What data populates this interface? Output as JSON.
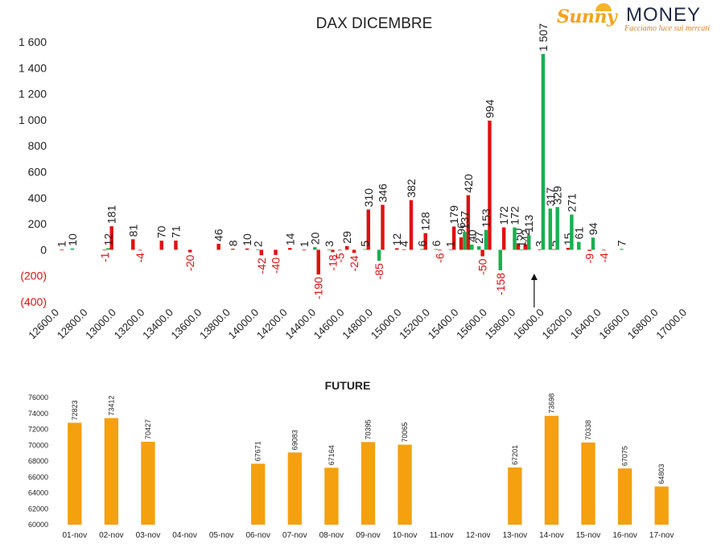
{
  "logo": {
    "brand_left": "Sunny",
    "brand_right": "MONEY",
    "tagline": "Facciamo luce sui mercati"
  },
  "colors": {
    "red": "#e01010",
    "green": "#17b04f",
    "orange": "#f5a00f",
    "axis": "#222222",
    "negative": "#e01010"
  },
  "chart_data": [
    {
      "type": "bar",
      "title": "DAX DICEMBRE",
      "ylim": [
        -400,
        1600
      ],
      "yticks": [
        1600,
        1400,
        1200,
        1000,
        800,
        600,
        400,
        200,
        0,
        -200,
        -400
      ],
      "ytick_labels": [
        "1 600",
        "1 400",
        "1 200",
        "1 000",
        "800",
        "600",
        "400",
        "200",
        "0",
        "(200)",
        "(400)"
      ],
      "xticks": [
        12600,
        12800,
        13000,
        13200,
        13400,
        13600,
        13800,
        14000,
        14200,
        14400,
        14600,
        14800,
        15000,
        15200,
        15400,
        15600,
        15800,
        16000,
        16200,
        16400,
        16600,
        16800,
        17000
      ],
      "xtick_labels": [
        "12600.0",
        "12800.0",
        "13000.0",
        "13200.0",
        "13400.0",
        "13600.0",
        "13800.0",
        "14000.0",
        "14200.0",
        "14400.0",
        "14600.0",
        "14800.0",
        "15000.0",
        "15200.0",
        "15400.0",
        "15600.0",
        "15800.0",
        "16000.0",
        "16200.0",
        "16400.0",
        "16600.0",
        "16800.0",
        "17000.0"
      ],
      "strike_step": 50,
      "current_price_marker": 15950,
      "series": [
        {
          "color": "red",
          "points": [
            [
              12650,
              1
            ],
            [
              12950,
              -1
            ],
            [
              13000,
              181
            ],
            [
              13150,
              81
            ],
            [
              13200,
              -4
            ],
            [
              13350,
              70
            ],
            [
              13450,
              71
            ],
            [
              13550,
              -20
            ],
            [
              13750,
              46
            ],
            [
              13850,
              8
            ],
            [
              13950,
              10
            ],
            [
              14050,
              -42
            ],
            [
              14150,
              -40
            ],
            [
              14250,
              14
            ],
            [
              14350,
              1
            ],
            [
              14450,
              -190
            ],
            [
              14550,
              -18
            ],
            [
              14600,
              -5
            ],
            [
              14650,
              29
            ],
            [
              14700,
              -24
            ],
            [
              14800,
              310
            ],
            [
              14900,
              346
            ],
            [
              15000,
              12
            ],
            [
              15050,
              4
            ],
            [
              15100,
              382
            ],
            [
              15200,
              128
            ],
            [
              15300,
              -6
            ],
            [
              15400,
              179
            ],
            [
              15450,
              96
            ],
            [
              15500,
              420
            ],
            [
              15600,
              -50
            ],
            [
              15650,
              994
            ],
            [
              15750,
              172
            ],
            [
              15850,
              50
            ],
            [
              15900,
              42
            ],
            [
              16000,
              3
            ],
            [
              16100,
              5
            ],
            [
              16200,
              15
            ],
            [
              16350,
              -9
            ],
            [
              16450,
              -4
            ]
          ]
        },
        {
          "color": "green",
          "points": [
            [
              12700,
              10
            ],
            [
              12950,
              12
            ],
            [
              14000,
              2
            ],
            [
              14400,
              20
            ],
            [
              14500,
              3
            ],
            [
              14750,
              5
            ],
            [
              14850,
              -85
            ],
            [
              15150,
              6
            ],
            [
              15250,
              6
            ],
            [
              15350,
              1
            ],
            [
              15450,
              137
            ],
            [
              15500,
              40
            ],
            [
              15550,
              27
            ],
            [
              15600,
              153
            ],
            [
              15700,
              -158
            ],
            [
              15800,
              172
            ],
            [
              15850,
              1
            ],
            [
              15900,
              113
            ],
            [
              16000,
              1507
            ],
            [
              16050,
              317
            ],
            [
              16100,
              329
            ],
            [
              16200,
              271
            ],
            [
              16250,
              61
            ],
            [
              16350,
              94
            ],
            [
              16550,
              7
            ]
          ]
        }
      ]
    },
    {
      "type": "bar",
      "title": "FUTURE",
      "ylim": [
        60000,
        76000
      ],
      "yticks": [
        76000,
        74000,
        72000,
        70000,
        68000,
        66000,
        64000,
        62000,
        60000
      ],
      "ytick_labels": [
        "76000",
        "74000",
        "72000",
        "70000",
        "68000",
        "66000",
        "64000",
        "62000",
        "60000"
      ],
      "categories": [
        "01-nov",
        "02-nov",
        "03-nov",
        "04-nov",
        "05-nov",
        "06-nov",
        "07-nov",
        "08-nov",
        "09-nov",
        "10-nov",
        "11-nov",
        "12-nov",
        "13-nov",
        "14-nov",
        "15-nov",
        "16-nov",
        "17-nov"
      ],
      "values": [
        72823,
        73412,
        70427,
        null,
        null,
        67671,
        69083,
        67164,
        70395,
        70065,
        null,
        null,
        67201,
        73698,
        70338,
        67075,
        64803
      ]
    }
  ]
}
